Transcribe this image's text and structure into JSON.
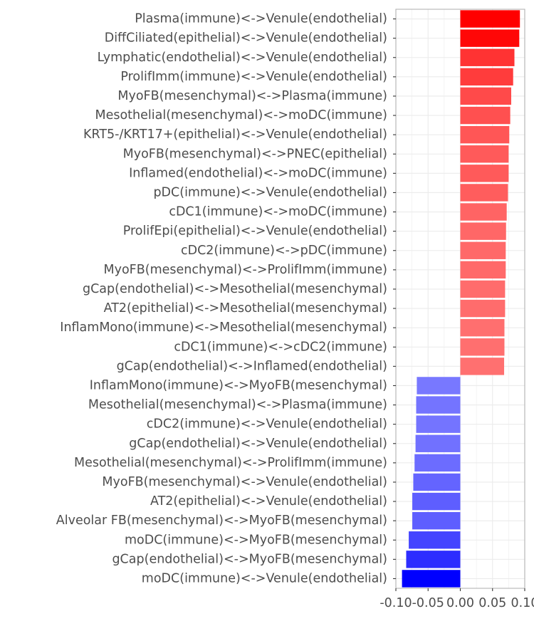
{
  "chart_data": {
    "type": "bar",
    "orientation": "horizontal",
    "title": "",
    "xlabel": "",
    "ylabel": "",
    "xlim": [
      -0.1,
      0.1
    ],
    "x_ticks": [
      -0.1,
      -0.05,
      0.0,
      0.05,
      0.1
    ],
    "x_tick_labels": [
      "-0.10",
      "-0.05",
      "0.00",
      "0.05",
      "0.10"
    ],
    "grid": true,
    "legend": "none",
    "colors": {
      "high": "#ff0000",
      "mid": "#ffffff",
      "low": "#0000ff",
      "grid": "#ebebeb",
      "text": "#4d4d4d"
    },
    "categories": [
      "Plasma(immune)<->Venule(endothelial)",
      "DiffCiliated(epithelial)<->Venule(endothelial)",
      "Lymphatic(endothelial)<->Venule(endothelial)",
      "ProlifImm(immune)<->Venule(endothelial)",
      "MyoFB(mesenchymal)<->Plasma(immune)",
      "Mesothelial(mesenchymal)<->moDC(immune)",
      "KRT5-/KRT17+(epithelial)<->Venule(endothelial)",
      "MyoFB(mesenchymal)<->PNEC(epithelial)",
      "Inflamed(endothelial)<->moDC(immune)",
      "pDC(immune)<->Venule(endothelial)",
      "cDC1(immune)<->moDC(immune)",
      "ProlifEpi(epithelial)<->Venule(endothelial)",
      "cDC2(immune)<->pDC(immune)",
      "MyoFB(mesenchymal)<->ProlifImm(immune)",
      "gCap(endothelial)<->Mesothelial(mesenchymal)",
      "AT2(epithelial)<->Mesothelial(mesenchymal)",
      "InflamMono(immune)<->Mesothelial(mesenchymal)",
      "cDC1(immune)<->cDC2(immune)",
      "gCap(endothelial)<->Inflamed(endothelial)",
      "InflamMono(immune)<->MyoFB(mesenchymal)",
      "Mesothelial(mesenchymal)<->Plasma(immune)",
      "cDC2(immune)<->Venule(endothelial)",
      "gCap(endothelial)<->Venule(endothelial)",
      "Mesothelial(mesenchymal)<->ProlifImm(immune)",
      "MyoFB(mesenchymal)<->Venule(endothelial)",
      "AT2(epithelial)<->Venule(endothelial)",
      "Alveolar FB(mesenchymal)<->MyoFB(mesenchymal)",
      "moDC(immune)<->MyoFB(mesenchymal)",
      "gCap(endothelial)<->MyoFB(mesenchymal)",
      "moDC(immune)<->Venule(endothelial)"
    ],
    "values": [
      0.0925,
      0.0915,
      0.084,
      0.082,
      0.079,
      0.0775,
      0.076,
      0.075,
      0.075,
      0.074,
      0.072,
      0.071,
      0.0705,
      0.0705,
      0.0695,
      0.0695,
      0.0685,
      0.0685,
      0.068,
      -0.0675,
      -0.0685,
      -0.0685,
      -0.0695,
      -0.071,
      -0.073,
      -0.0745,
      -0.0745,
      -0.08,
      -0.084,
      -0.0905
    ]
  }
}
